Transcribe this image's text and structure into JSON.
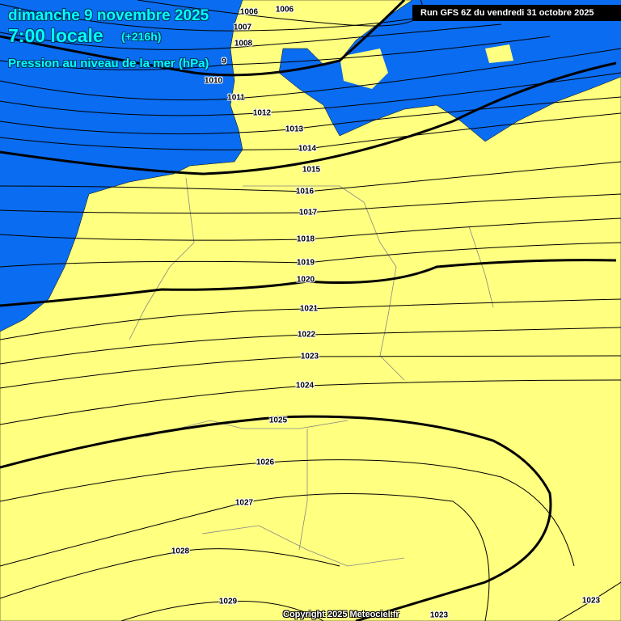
{
  "header": {
    "title": "dimanche 9 novembre 2025",
    "time": "7:00 locale",
    "lead": "(+216h)",
    "parameter": "Pression au niveau de la mer (hPa)"
  },
  "run_label": "Run GFS 6Z du vendredi 31 octobre 2025",
  "copyright": "Copyright 2025 Meteociel.fr",
  "colors": {
    "sea": "#0a6cf0",
    "land": "#ffff80",
    "title_text": "#00ffff"
  },
  "isobar_labels": [
    "1006",
    "1006",
    "1007",
    "1008",
    "9",
    "1010",
    "1011",
    "1012",
    "1013",
    "1014",
    "1015",
    "1016",
    "1017",
    "1018",
    "1019",
    "1020",
    "1021",
    "1022",
    "1023",
    "1024",
    "1025",
    "1026",
    "1027",
    "1028",
    "1029",
    "1023",
    "1023"
  ]
}
